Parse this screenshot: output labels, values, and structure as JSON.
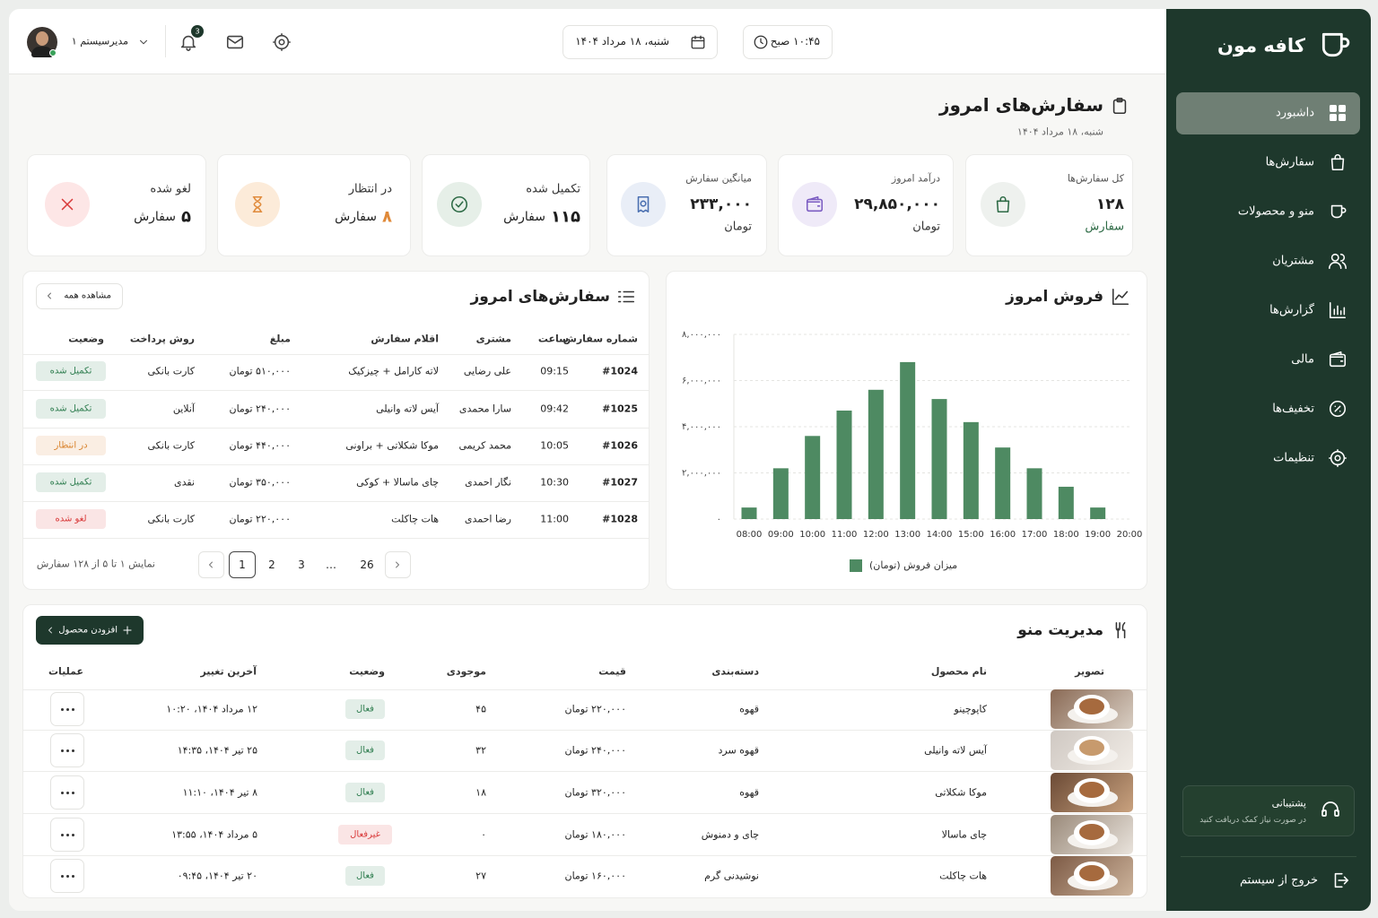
{
  "sidebar": {
    "brand": "کافه مون",
    "nav": [
      "داشبورد",
      "سفارش‌ها",
      "منو و محصولات",
      "مشتریان",
      "گزارش‌ها",
      "مالی",
      "تخفیف‌ها",
      "تنظیمات"
    ],
    "support": {
      "title": "پشتیبانی",
      "subtitle": "در صورت نیاز کمک دریافت کنید"
    },
    "logout": "خروج از سیستم"
  },
  "topbar": {
    "time": "۱۰:۴۵ صبح",
    "date": "شنبه، ۱۸ مرداد ۱۴۰۴",
    "notifications": "3",
    "user": "مدیرسیستم ۱"
  },
  "header": {
    "title": "سفارش‌های امروز",
    "subtitle": "شنبه، ۱۸ مرداد ۱۴۰۴"
  },
  "stats": [
    {
      "label": "کل سفارش‌ها",
      "value": "۱۲۸",
      "unit": "سفارش"
    },
    {
      "label": "درآمد امروز",
      "value": "۲۹,۸۵۰,۰۰۰",
      "unit": "تومان"
    },
    {
      "label": "میانگین سفارش",
      "value": "۲۳۳,۰۰۰",
      "unit": "تومان"
    },
    {
      "label": "تکمیل شده",
      "value": "۱۱۵",
      "unit": "سفارش"
    },
    {
      "label": "در انتظار",
      "value": "۸",
      "unit": "سفارش"
    },
    {
      "label": "لغو شده",
      "value": "۵",
      "unit": "سفارش"
    }
  ],
  "chart_data": {
    "type": "bar",
    "title": "فروش امروز",
    "categories": [
      "08:00",
      "09:00",
      "10:00",
      "11:00",
      "12:00",
      "13:00",
      "14:00",
      "15:00",
      "16:00",
      "17:00",
      "18:00",
      "19:00",
      "20:00"
    ],
    "series": [
      {
        "name": "میزان فروش (تومان)",
        "color": "#4e8a62",
        "values": [
          500000,
          2200000,
          3600000,
          4700000,
          5600000,
          6800000,
          5200000,
          4200000,
          3100000,
          2200000,
          1400000,
          500000,
          null
        ]
      }
    ],
    "ylim": [
      0,
      8000000
    ],
    "yticks": [
      {
        "value": 0,
        "label": "۰"
      },
      {
        "value": 2000000,
        "label": "۲,۰۰۰,۰۰۰"
      },
      {
        "value": 4000000,
        "label": "۴,۰۰۰,۰۰۰"
      },
      {
        "value": 6000000,
        "label": "۶,۰۰۰,۰۰۰"
      },
      {
        "value": 8000000,
        "label": "۸,۰۰۰,۰۰۰"
      }
    ],
    "grid": true,
    "legend": "bottom"
  },
  "orders": {
    "title": "سفارش‌های امروز",
    "view_all": "مشاهده همه",
    "columns": [
      "شماره سفارش",
      "ساعت",
      "مشتری",
      "اقلام سفارش",
      "مبلغ",
      "روش پرداخت",
      "وضعیت"
    ],
    "rows": [
      [
        "#1024",
        "09:15",
        "علی رضایی",
        "لاته کارامل + چیزکیک",
        "۵۱۰,۰۰۰ تومان",
        "کارت بانکی",
        {
          "text": "تکمیل شده",
          "color": "#2e7d4f"
        }
      ],
      [
        "#1025",
        "09:42",
        "سارا محمدی",
        "آیس لاته وانیلی",
        "۲۴۰,۰۰۰ تومان",
        "آنلاین",
        {
          "text": "تکمیل شده",
          "color": "#2e7d4f"
        }
      ],
      [
        "#1026",
        "10:05",
        "محمد کریمی",
        "موکا شکلاتی + براونی",
        "۴۴۰,۰۰۰ تومان",
        "کارت بانکی",
        {
          "text": "در انتظار",
          "color": "#d9822b"
        }
      ],
      [
        "#1027",
        "10:30",
        "نگار احمدی",
        "چای ماسالا + کوکی",
        "۳۵۰,۰۰۰ تومان",
        "نقدی",
        {
          "text": "تکمیل شده",
          "color": "#2e7d4f"
        }
      ],
      [
        "#1028",
        "11:00",
        "رضا احمدی",
        "هات چاکلت",
        "۲۲۰,۰۰۰ تومان",
        "کارت بانکی",
        {
          "text": "لغو شده",
          "color": "#d93a3a"
        }
      ]
    ],
    "pages": [
      "1",
      "2",
      "3",
      "…",
      "26"
    ],
    "summary": "نمایش ۱ تا ۵ از ۱۲۸ سفارش"
  },
  "menu": {
    "title": "مدیریت منو",
    "add_button": "افزودن محصول",
    "columns": [
      "تصویر",
      "نام محصول",
      "دسته‌بندی",
      "قیمت",
      "موجودی",
      "وضعیت",
      "آخرین تغییر",
      "عملیات"
    ],
    "rows": [
      [
        "کاپوچینو",
        "قهوه",
        "۲۲۰,۰۰۰ تومان",
        "۴۵",
        {
          "text": "فعال",
          "color": "#2e7d4f"
        },
        "۱۲ مرداد ۱۴۰۴، ۱۰:۲۰"
      ],
      [
        "آیس لاته وانیلی",
        "قهوه سرد",
        "۲۴۰,۰۰۰ تومان",
        "۳۲",
        {
          "text": "فعال",
          "color": "#2e7d4f"
        },
        "۲۵ تیر ۱۴۰۴، ۱۴:۳۵"
      ],
      [
        "موکا شکلاتی",
        "قهوه",
        "۳۲۰,۰۰۰ تومان",
        "۱۸",
        {
          "text": "فعال",
          "color": "#2e7d4f"
        },
        "۸ تیر ۱۴۰۴، ۱۱:۱۰"
      ],
      [
        "چای ماسالا",
        "چای و دمنوش",
        "۱۸۰,۰۰۰ تومان",
        "۰",
        {
          "text": "غیرفعال",
          "color": "#d93a3a"
        },
        "۵ مرداد ۱۴۰۴، ۱۳:۵۵"
      ],
      [
        "هات چاکلت",
        "نوشیدنی گرم",
        "۱۶۰,۰۰۰ تومان",
        "۲۷",
        {
          "text": "فعال",
          "color": "#2e7d4f"
        },
        "۲۰ تیر ۱۴۰۴، ۰۹:۴۵"
      ]
    ]
  }
}
